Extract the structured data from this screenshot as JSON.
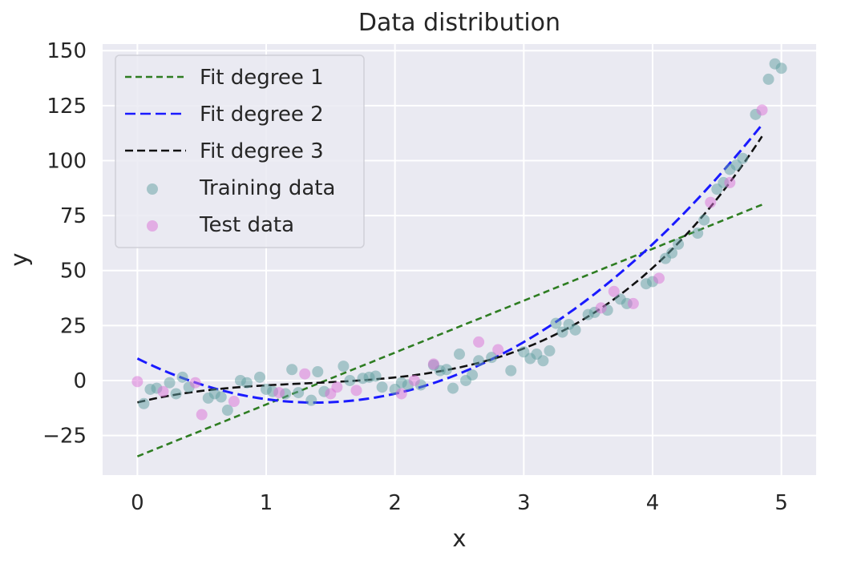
{
  "chart_data": {
    "type": "scatter",
    "title": "Data distribution",
    "xlabel": "x",
    "ylabel": "y",
    "xlim": [
      -0.27,
      5.27
    ],
    "ylim": [
      -43,
      153
    ],
    "xticks": [
      0,
      1,
      2,
      3,
      4,
      5
    ],
    "yticks": [
      -25,
      0,
      25,
      50,
      75,
      100,
      125,
      150
    ],
    "xtick_labels": [
      "0",
      "1",
      "2",
      "3",
      "4",
      "5"
    ],
    "ytick_labels": [
      "−25",
      "0",
      "25",
      "50",
      "75",
      "100",
      "125",
      "150"
    ],
    "grid": true,
    "legend_position": "top-left",
    "colors": {
      "background": "#eaeaf2",
      "grid": "#ffffff",
      "fit1": "#2e7d22",
      "fit2": "#1a1aff",
      "fit3": "#111111",
      "training": "#5f9ea0",
      "test": "#da70d6"
    },
    "fits": [
      {
        "name": "Fit degree 1",
        "x_range": [
          0,
          4.85
        ],
        "coeffs": [
          -34.5,
          23.6
        ]
      },
      {
        "name": "Fit degree 2",
        "x_range": [
          0,
          4.85
        ],
        "coeffs": [
          10,
          -29,
          10.5
        ]
      },
      {
        "name": "Fit degree 3",
        "x_range": [
          0,
          4.85
        ],
        "coeffs": [
          -10,
          14.5,
          -9.0,
          2.3
        ]
      }
    ],
    "series": [
      {
        "name": "Training data",
        "points": [
          [
            0.05,
            -10.5
          ],
          [
            0.1,
            -4
          ],
          [
            0.15,
            -3.5
          ],
          [
            0.25,
            -1
          ],
          [
            0.3,
            -6
          ],
          [
            0.35,
            1.5
          ],
          [
            0.4,
            -3
          ],
          [
            0.55,
            -8
          ],
          [
            0.6,
            -6
          ],
          [
            0.65,
            -7.5
          ],
          [
            0.7,
            -13.5
          ],
          [
            0.8,
            0
          ],
          [
            0.85,
            -1
          ],
          [
            0.95,
            1.5
          ],
          [
            1.0,
            -4
          ],
          [
            1.05,
            -5
          ],
          [
            1.15,
            -6
          ],
          [
            1.2,
            5
          ],
          [
            1.25,
            -5.5
          ],
          [
            1.35,
            -9
          ],
          [
            1.4,
            4
          ],
          [
            1.45,
            -5
          ],
          [
            1.6,
            6.5
          ],
          [
            1.65,
            0
          ],
          [
            1.75,
            1
          ],
          [
            1.8,
            1.5
          ],
          [
            1.85,
            2
          ],
          [
            1.9,
            -3
          ],
          [
            2.0,
            -4
          ],
          [
            2.05,
            -1
          ],
          [
            2.1,
            -2
          ],
          [
            2.2,
            -2
          ],
          [
            2.3,
            7
          ],
          [
            2.35,
            4.5
          ],
          [
            2.4,
            5
          ],
          [
            2.45,
            -3.5
          ],
          [
            2.5,
            12
          ],
          [
            2.55,
            0
          ],
          [
            2.6,
            2.5
          ],
          [
            2.65,
            9
          ],
          [
            2.75,
            10.5
          ],
          [
            2.9,
            4.5
          ],
          [
            3.0,
            13
          ],
          [
            3.05,
            10
          ],
          [
            3.1,
            12
          ],
          [
            3.15,
            9
          ],
          [
            3.2,
            13.5
          ],
          [
            3.25,
            26
          ],
          [
            3.3,
            22
          ],
          [
            3.35,
            25.5
          ],
          [
            3.4,
            23
          ],
          [
            3.5,
            30
          ],
          [
            3.55,
            31
          ],
          [
            3.65,
            32
          ],
          [
            3.75,
            37
          ],
          [
            3.8,
            35
          ],
          [
            3.95,
            44
          ],
          [
            4.0,
            45
          ],
          [
            4.1,
            55.5
          ],
          [
            4.15,
            58
          ],
          [
            4.2,
            62
          ],
          [
            4.35,
            67
          ],
          [
            4.4,
            73
          ],
          [
            4.5,
            87
          ],
          [
            4.55,
            90
          ],
          [
            4.6,
            96
          ],
          [
            4.65,
            98
          ],
          [
            4.7,
            101
          ],
          [
            4.8,
            121
          ],
          [
            4.9,
            137
          ],
          [
            4.95,
            144
          ],
          [
            5.0,
            142
          ]
        ]
      },
      {
        "name": "Test data",
        "points": [
          [
            0.0,
            -0.5
          ],
          [
            0.2,
            -5
          ],
          [
            0.45,
            -1
          ],
          [
            0.5,
            -15.5
          ],
          [
            0.75,
            -9.5
          ],
          [
            1.1,
            -5.5
          ],
          [
            1.3,
            3
          ],
          [
            1.5,
            -6
          ],
          [
            1.55,
            -3
          ],
          [
            1.7,
            -4.5
          ],
          [
            2.05,
            -6
          ],
          [
            2.15,
            0
          ],
          [
            2.3,
            7.5
          ],
          [
            2.65,
            17.5
          ],
          [
            2.8,
            14
          ],
          [
            3.6,
            33
          ],
          [
            3.7,
            40.5
          ],
          [
            3.85,
            35
          ],
          [
            4.05,
            46.5
          ],
          [
            4.45,
            81
          ],
          [
            4.6,
            90
          ],
          [
            4.85,
            123
          ]
        ]
      }
    ]
  },
  "legend": {
    "items": [
      {
        "label": "Fit degree 1",
        "kind": "line",
        "color": "#2e7d22",
        "dash": "8,5"
      },
      {
        "label": "Fit degree 2",
        "kind": "line",
        "color": "#1a1aff",
        "dash": "13,6"
      },
      {
        "label": "Fit degree 3",
        "kind": "line",
        "color": "#111111",
        "dash": "10,5"
      },
      {
        "label": "Training data",
        "kind": "marker",
        "color": "#5f9ea0"
      },
      {
        "label": "Test data",
        "kind": "marker",
        "color": "#da70d6"
      }
    ]
  }
}
